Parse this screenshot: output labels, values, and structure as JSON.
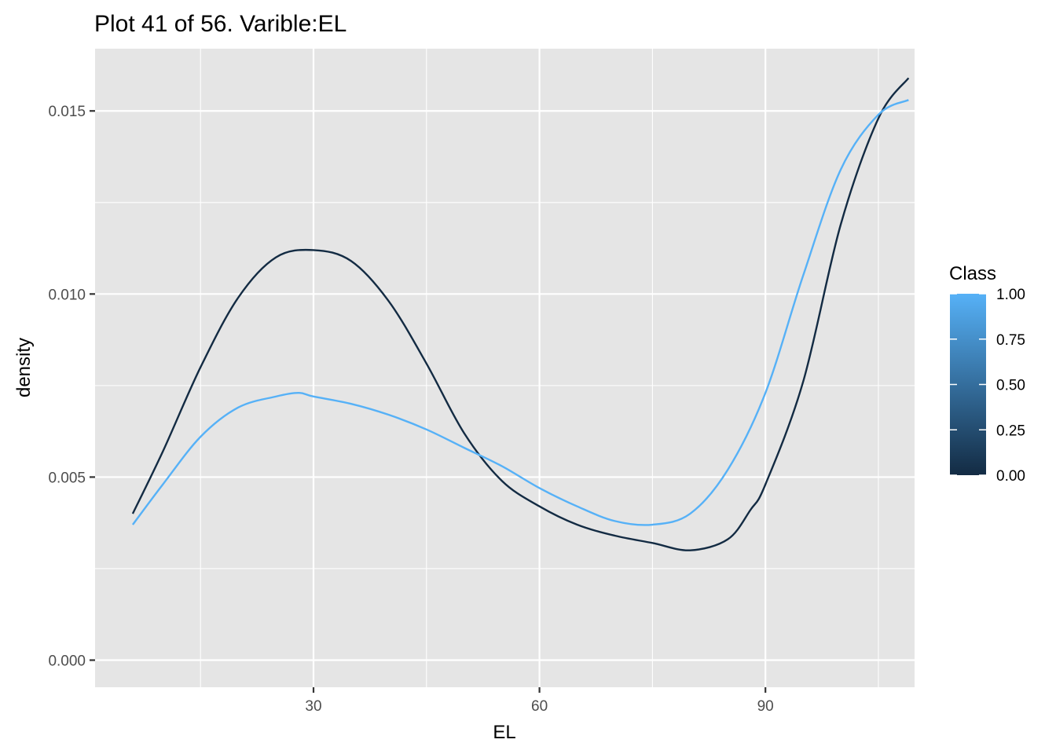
{
  "chart_data": {
    "type": "line",
    "title": "Plot 41 of 56. Varible:EL",
    "xlabel": "EL",
    "ylabel": "density",
    "xlim": [
      1,
      109.8
    ],
    "ylim": [
      -0.00074,
      0.0167
    ],
    "x_ticks": [
      30,
      60,
      90
    ],
    "x_minor_ticks": [
      15,
      45,
      75,
      105
    ],
    "y_ticks": [
      0.0,
      0.005,
      0.01,
      0.015
    ],
    "y_tick_labels": [
      "0.000",
      "0.005",
      "0.010",
      "0.015"
    ],
    "y_minor_ticks": [
      0.0025,
      0.0075,
      0.0125
    ],
    "grid": true,
    "background": "#e5e5e5",
    "legend": {
      "title": "Class",
      "type": "colorbar",
      "placement": "right",
      "ticks": [
        0.0,
        0.25,
        0.5,
        0.75,
        1.0
      ],
      "tick_labels": [
        "0.00",
        "0.25",
        "0.50",
        "0.75",
        "1.00"
      ],
      "color_low": "#132b43",
      "color_high": "#56b1f7"
    },
    "series": [
      {
        "class_value": 0,
        "color": "#132b43",
        "x": [
          6,
          10,
          15,
          20,
          25,
          30,
          35,
          40,
          45,
          50,
          55,
          60,
          65,
          70,
          75,
          80,
          85,
          88,
          90,
          95,
          100,
          105,
          109
        ],
        "y": [
          0.004,
          0.0057,
          0.008,
          0.0099,
          0.011,
          0.0112,
          0.0109,
          0.0098,
          0.0081,
          0.0062,
          0.0049,
          0.0042,
          0.0037,
          0.0034,
          0.0032,
          0.003,
          0.0033,
          0.0041,
          0.0048,
          0.0076,
          0.0119,
          0.0148,
          0.0159
        ]
      },
      {
        "class_value": 1,
        "color": "#56b1f7",
        "x": [
          6,
          10,
          15,
          20,
          25,
          28,
          30,
          35,
          40,
          45,
          50,
          55,
          60,
          65,
          70,
          75,
          80,
          85,
          90,
          95,
          100,
          105,
          109
        ],
        "y": [
          0.0037,
          0.0048,
          0.0061,
          0.0069,
          0.0072,
          0.0073,
          0.0072,
          0.007,
          0.0067,
          0.0063,
          0.0058,
          0.0053,
          0.0047,
          0.0042,
          0.0038,
          0.0037,
          0.004,
          0.0052,
          0.0073,
          0.0105,
          0.0134,
          0.0149,
          0.0153
        ]
      }
    ]
  }
}
